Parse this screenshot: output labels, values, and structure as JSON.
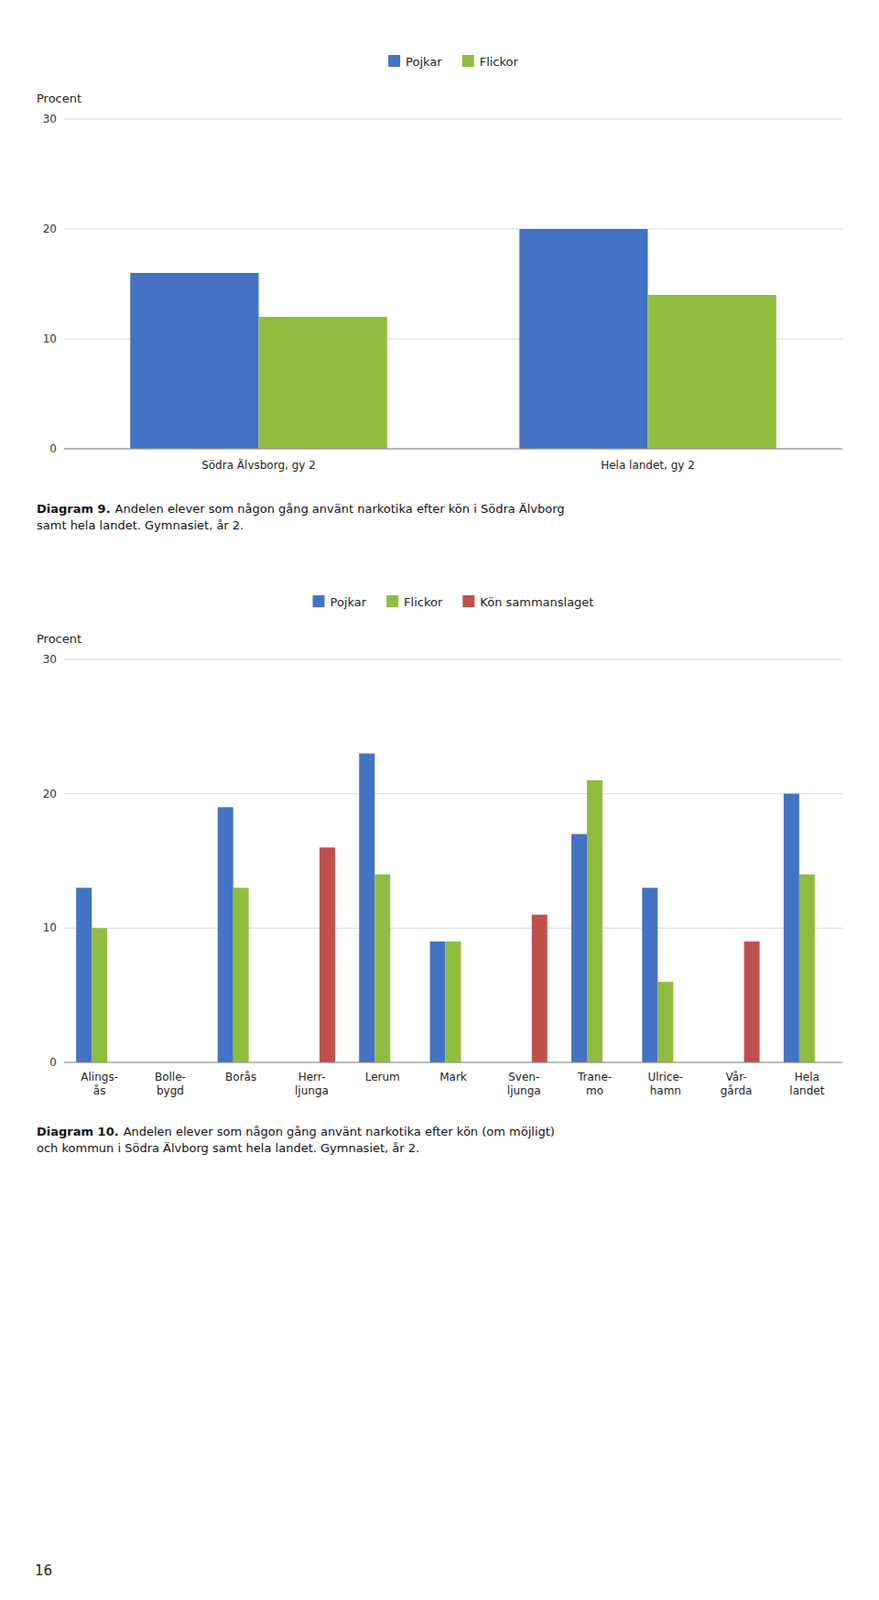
{
  "chart_data": [
    {
      "type": "bar",
      "title": "Diagram 9.",
      "subtitle": "Andelen elever som någon gång använt narkotika efter kön i Södra Älvborg\nsamt hela landet. Gymnasiet, år 2.",
      "ylabel": "Procent",
      "categories": [
        "Södra Älvsborg, gy 2",
        "Hela landet, gy 2"
      ],
      "series": [
        {
          "name": "Pojkar",
          "color": "#4472c4",
          "values": [
            16,
            20
          ]
        },
        {
          "name": "Flickor",
          "color": "#8fbc3f",
          "values": [
            12,
            14
          ]
        }
      ],
      "ylim": [
        0,
        30
      ],
      "yticks": [
        0,
        10,
        20,
        30
      ],
      "grid": true,
      "legend": "top"
    },
    {
      "type": "bar",
      "title": "Diagram 10.",
      "subtitle": "Andelen elever som någon gång använt narkotika efter kön (om möjligt)\noch kommun i Södra Älvborg samt hela landet. Gymnasiet, år 2.",
      "ylabel": "Procent",
      "categories": [
        "Alings-\nås",
        "Bolle-\nbygd",
        "Borås",
        "Herr-\nljunga",
        "Lerum",
        "Mark",
        "Sven-\nljunga",
        "Trane-\nmo",
        "Ulrice-\nhamn",
        "Vår-\ngårda",
        "Hela\nlandet"
      ],
      "series": [
        {
          "name": "Pojkar",
          "color": "#4472c4",
          "values": [
            13,
            null,
            19,
            null,
            23,
            9,
            null,
            17,
            13,
            null,
            20
          ]
        },
        {
          "name": "Flickor",
          "color": "#8fbc3f",
          "values": [
            10,
            null,
            13,
            null,
            14,
            9,
            null,
            21,
            6,
            null,
            14
          ]
        },
        {
          "name": "Kön sammanslaget",
          "color": "#c0504d",
          "values": [
            null,
            null,
            null,
            16,
            null,
            null,
            11,
            null,
            null,
            9,
            null
          ]
        }
      ],
      "ylim": [
        0,
        30
      ],
      "yticks": [
        0,
        10,
        20,
        30
      ],
      "grid": true,
      "legend": "top"
    }
  ],
  "page_number": "16"
}
